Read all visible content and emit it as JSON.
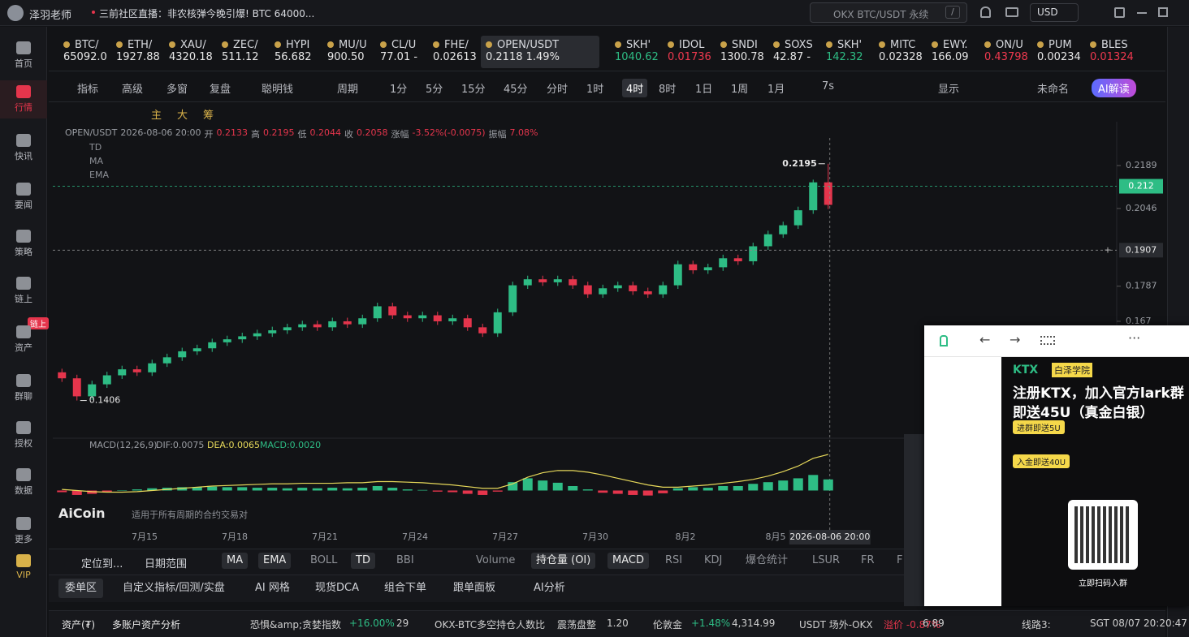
{
  "topbar": {
    "user": "泽羽老师",
    "news": "三前社区直播：非农核弹今晚引爆! BTC 64000...",
    "search": "OKX BTC/USDT 永续",
    "search_key": "/",
    "currency": "USD"
  },
  "sidebar": {
    "items": [
      "首页",
      "行情",
      "快讯",
      "要闻",
      "策略",
      "链上",
      "资产",
      "群聊",
      "授权",
      "数据",
      "更多",
      "VIP"
    ],
    "active": "行情",
    "badge": "链上"
  },
  "tickers": [
    {
      "name": "BTC/",
      "price": "65092.0",
      "color": "#e8e8e8"
    },
    {
      "name": "ETH/",
      "price": "1927.88",
      "color": "#e8e8e8"
    },
    {
      "name": "XAU/",
      "price": "4320.18",
      "color": "#e8e8e8"
    },
    {
      "name": "ZEC/",
      "price": "511.12",
      "color": "#e8e8e8"
    },
    {
      "name": "HYPI",
      "price": "56.682",
      "color": "#e8e8e8"
    },
    {
      "name": "MU/U",
      "price": "900.50",
      "color": "#e8e8e8"
    },
    {
      "name": "CL/U",
      "price": "77.01 -",
      "color": "#e8e8e8"
    },
    {
      "name": "FHE/",
      "price": "0.02613",
      "color": "#e8e8e8"
    },
    {
      "name": "OPEN/USDT",
      "price": "0.2118  1.49%",
      "color": "#e8e8e8"
    },
    {
      "name": "SKH'",
      "price": "1040.62",
      "color": "#2ebd85"
    },
    {
      "name": "IDOL",
      "price": "0.01736",
      "color": "#f0394f"
    },
    {
      "name": "SNDI",
      "price": "1300.78",
      "color": "#e8e8e8"
    },
    {
      "name": "SOXS",
      "price": "42.87 -",
      "color": "#e8e8e8"
    },
    {
      "name": "SKH'",
      "price": "142.32",
      "color": "#2ebd85"
    },
    {
      "name": "MITC",
      "price": "0.02328",
      "color": "#e8e8e8"
    },
    {
      "name": "EWY.",
      "price": "166.09",
      "color": "#e8e8e8"
    },
    {
      "name": "ON/U",
      "price": "0.43798",
      "color": "#f0394f"
    },
    {
      "name": "PUM",
      "price": "0.00234",
      "color": "#e8e8e8"
    },
    {
      "name": "BLES",
      "price": "0.01324",
      "color": "#f0394f"
    }
  ],
  "selected_ticker": "OPEN/USDT",
  "toolbar": {
    "tools": [
      "指标",
      "高级",
      "多窗",
      "复盘",
      "聪明钱"
    ],
    "period_label": "周期",
    "periods": [
      "1分",
      "5分",
      "15分",
      "45分",
      "分时",
      "1时",
      "4时",
      "8时",
      "1日",
      "1周",
      "1月"
    ],
    "active_period": "4时",
    "refresh": "7s",
    "display": "显示",
    "layout": "未命名",
    "ai": "AI解读"
  },
  "draw_tools": [
    "主",
    "大",
    "筹"
  ],
  "chart_data": {
    "type": "candlestick",
    "symbol": "OPEN/USDT",
    "datetime": "2026-08-06 20:00",
    "info_labels": {
      "open": "开",
      "high": "高",
      "low": "低",
      "close": "收",
      "change": "涨幅",
      "amplitude": "振幅"
    },
    "change": "-3.52%(-0.0075)",
    "amplitude": "7.08%",
    "overlays": [
      "TD",
      "MA",
      "EMA"
    ],
    "categories": [
      null,
      null,
      null,
      null,
      null,
      null,
      "7月15",
      null,
      null,
      null,
      null,
      null,
      "7月18",
      null,
      null,
      null,
      null,
      null,
      "7月21",
      null,
      null,
      null,
      null,
      null,
      "7月24",
      null,
      null,
      null,
      null,
      null,
      "7月27",
      null,
      null,
      null,
      null,
      null,
      "7月30",
      null,
      null,
      null,
      null,
      null,
      "8月2",
      null,
      null,
      null,
      null,
      null,
      "8月5",
      null,
      null,
      null
    ],
    "open": [
      0.15,
      0.148,
      0.142,
      0.146,
      0.149,
      0.151,
      0.15,
      0.153,
      0.155,
      0.157,
      0.158,
      0.16,
      0.161,
      0.162,
      0.163,
      0.164,
      0.165,
      0.166,
      0.165,
      0.167,
      0.166,
      0.168,
      0.172,
      0.169,
      0.168,
      0.169,
      0.167,
      0.168,
      0.165,
      0.163,
      0.17,
      0.179,
      0.181,
      0.18,
      0.181,
      0.179,
      0.176,
      0.178,
      0.179,
      0.177,
      0.176,
      0.179,
      0.186,
      0.184,
      0.185,
      0.188,
      0.187,
      0.192,
      0.196,
      0.199,
      0.204,
      0.2133
    ],
    "high": [
      0.1512,
      0.1492,
      0.1472,
      0.1502,
      0.1522,
      0.1522,
      0.1542,
      0.1562,
      0.1582,
      0.1592,
      0.1612,
      0.1622,
      0.1632,
      0.1642,
      0.1652,
      0.1662,
      0.1672,
      0.1672,
      0.1682,
      0.1682,
      0.1692,
      0.1732,
      0.1732,
      0.1702,
      0.1702,
      0.1702,
      0.1692,
      0.1692,
      0.1662,
      0.1712,
      0.1802,
      0.1822,
      0.1822,
      0.1822,
      0.1822,
      0.1802,
      0.1792,
      0.1802,
      0.1802,
      0.1782,
      0.1802,
      0.1872,
      0.1872,
      0.1862,
      0.1892,
      0.1892,
      0.1932,
      0.1972,
      0.2002,
      0.2052,
      0.2142,
      0.2195
    ],
    "low": [
      0.1468,
      0.1406,
      0.1408,
      0.1448,
      0.1478,
      0.1488,
      0.1488,
      0.1518,
      0.1538,
      0.1558,
      0.1568,
      0.1588,
      0.1598,
      0.1608,
      0.1618,
      0.1628,
      0.1638,
      0.1638,
      0.1638,
      0.1648,
      0.1648,
      0.1668,
      0.1678,
      0.1668,
      0.1668,
      0.1658,
      0.1658,
      0.1638,
      0.1618,
      0.1618,
      0.1688,
      0.1778,
      0.1788,
      0.1788,
      0.1778,
      0.1748,
      0.1748,
      0.1768,
      0.1758,
      0.1748,
      0.1748,
      0.1778,
      0.1828,
      0.1828,
      0.1838,
      0.1858,
      0.1858,
      0.1908,
      0.1948,
      0.1978,
      0.2028,
      0.2044
    ],
    "close": [
      0.148,
      0.142,
      0.146,
      0.149,
      0.151,
      0.15,
      0.153,
      0.155,
      0.157,
      0.158,
      0.16,
      0.161,
      0.162,
      0.163,
      0.164,
      0.165,
      0.166,
      0.165,
      0.167,
      0.166,
      0.168,
      0.172,
      0.169,
      0.168,
      0.169,
      0.167,
      0.168,
      0.165,
      0.163,
      0.17,
      0.179,
      0.181,
      0.18,
      0.181,
      0.179,
      0.176,
      0.178,
      0.179,
      0.177,
      0.176,
      0.179,
      0.186,
      0.184,
      0.185,
      0.188,
      0.187,
      0.192,
      0.196,
      0.199,
      0.204,
      0.2133,
      0.2058
    ],
    "up_color": "#2ebd85",
    "down_color": "#e5354c",
    "ylim": [
      0.1294,
      0.2308
    ],
    "yticks": [
      0.2189,
      0.2046,
      0.1787,
      0.167
    ],
    "last_price": 0.212,
    "crosshair_price": 0.1907,
    "macd": {
      "title": "MACD(12,26,9)",
      "dif_label": "DIF:0.0075",
      "dea_label": "DEA:0.0065",
      "macd_label": "MACD:0.0020",
      "ylim": [
        -0.003,
        0.0065
      ],
      "dea_color": "#e6d85a",
      "histogram": [
        -0.0003,
        -0.0008,
        -0.0006,
        -0.0003,
        0.0,
        0.0002,
        0.0004,
        0.0005,
        0.0006,
        0.0006,
        0.0007,
        0.0006,
        0.0006,
        0.0005,
        0.0005,
        0.0004,
        0.0005,
        0.0004,
        0.0005,
        0.0004,
        0.0005,
        0.0008,
        0.0005,
        0.0002,
        0.0001,
        -0.0002,
        -0.0003,
        -0.0006,
        -0.0008,
        -0.0002,
        0.0015,
        0.0022,
        0.0018,
        0.0014,
        0.0008,
        0.0002,
        -0.0004,
        -0.0006,
        -0.0008,
        -0.0009,
        -0.0005,
        0.0004,
        0.0006,
        0.0005,
        0.0008,
        0.0008,
        0.0012,
        0.0015,
        0.0018,
        0.0022,
        0.0028,
        0.002
      ],
      "dea": [
        0.0002,
        0.0,
        -0.0002,
        -0.0003,
        -0.0003,
        -0.0002,
        0.0,
        0.0002,
        0.0004,
        0.0006,
        0.0008,
        0.0009,
        0.001,
        0.0011,
        0.0012,
        0.0012,
        0.0013,
        0.0013,
        0.0013,
        0.0014,
        0.0014,
        0.0016,
        0.0016,
        0.0015,
        0.0014,
        0.0012,
        0.001,
        0.0007,
        0.0004,
        0.0004,
        0.0012,
        0.0024,
        0.0032,
        0.0036,
        0.0036,
        0.0033,
        0.0028,
        0.0022,
        0.0016,
        0.001,
        0.0006,
        0.0006,
        0.0008,
        0.001,
        0.0013,
        0.0016,
        0.002,
        0.0026,
        0.0034,
        0.0044,
        0.0058,
        0.0065
      ]
    }
  },
  "watermark": {
    "logo": "AiCoin",
    "text": "适用于所有周期的合约交易对"
  },
  "indicator_bar": {
    "locate": "定位到...",
    "date_range": "日期范围",
    "items": [
      {
        "text": "MA",
        "active": true
      },
      {
        "text": "EMA",
        "active": true
      },
      {
        "text": "BOLL",
        "active": false
      },
      {
        "text": "TD",
        "active": true
      },
      {
        "text": "BBI",
        "active": false
      },
      {
        "text": "Volume",
        "active": false
      },
      {
        "text": "持仓量 (OI)",
        "active": true
      },
      {
        "text": "MACD",
        "active": true
      },
      {
        "text": "RSI",
        "active": false
      },
      {
        "text": "KDJ",
        "active": false
      },
      {
        "text": "爆仓统计",
        "active": false
      },
      {
        "text": "LSUR",
        "active": false
      },
      {
        "text": "FR",
        "active": false
      },
      {
        "text": "F",
        "active": false
      }
    ]
  },
  "tabs": {
    "items": [
      "委单区",
      "自定义指标/回测/实盘",
      "AI 网格",
      "现货DCA",
      "组合下单",
      "跟单面板",
      "AI分析"
    ],
    "active": "委单区"
  },
  "status_bar": [
    {
      "text": "资产(₮)",
      "color": "#e8e8e8"
    },
    {
      "text": "多账户资产分析",
      "color": "#e8e8e8"
    },
    {
      "text": "恐惧&amp;贪婪指数",
      "color": "#cfcfcf"
    },
    {
      "text": "+16.00%",
      "color": "#2ebd85"
    },
    {
      "text": "29",
      "color": "#cfcfcf"
    },
    {
      "text": "OKX-BTC多空持仓人数比",
      "color": "#cfcfcf"
    },
    {
      "text": "震荡盘整",
      "color": "#cfcfcf"
    },
    {
      "text": "1.20",
      "color": "#cfcfcf"
    },
    {
      "text": "伦敦金",
      "color": "#cfcfcf"
    },
    {
      "text": "+1.48%",
      "color": "#2ebd85"
    },
    {
      "text": "4,314.99",
      "color": "#cfcfcf"
    },
    {
      "text": "USDT 场外-OKX",
      "color": "#cfcfcf"
    },
    {
      "text": "溢价 -0.87%",
      "color": "#e5354c"
    },
    {
      "text": "6.89",
      "color": "#cfcfcf"
    },
    {
      "text": "线路3:",
      "color": "#cfcfcf"
    },
    {
      "text": "SGT 08/07 20:20:47",
      "color": "#cfcfcf"
    }
  ],
  "popup": {
    "brand": "KTX",
    "partner": "白泽学院",
    "headline": "注册KTX，加入官方lark群",
    "subline": "即送45U（真金白银）",
    "offer1": "进群即送5U",
    "offer2": "入金即送40U",
    "scan": "立即扫码入群"
  }
}
